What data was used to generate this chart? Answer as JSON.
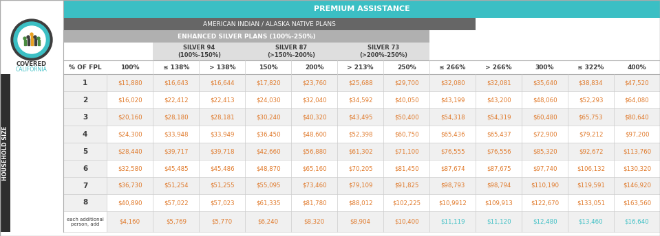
{
  "title_premium": "PREMIUM ASSISTANCE",
  "title_ai_an": "AMERICAN INDIAN / ALASKA NATIVE PLANS",
  "title_enhanced": "ENHANCED SILVER PLANS (100%-250%)",
  "silver94_label": "SILVER 94\n(100%-150%)",
  "silver87_label": "SILVER 87\n(>150%-200%)",
  "silver73_label": "SILVER 73\n(>200%-250%)",
  "col_headers": [
    "% OF FPL",
    "100%",
    "≤ 138%",
    "> 138%",
    "150%",
    "200%",
    "> 213%",
    "250%",
    "≤ 266%",
    "> 266%",
    "300%",
    "≤ 322%",
    "400%"
  ],
  "row_labels": [
    "1",
    "2",
    "3",
    "4",
    "5",
    "6",
    "7",
    "8",
    "each additional\nperson, add"
  ],
  "data": [
    [
      "$11,880",
      "$16,643",
      "$16,644",
      "$17,820",
      "$23,760",
      "$25,688",
      "$29,700",
      "$32,080",
      "$32,081",
      "$35,640",
      "$38,834",
      "$47,520"
    ],
    [
      "$16,020",
      "$22,412",
      "$22,413",
      "$24,030",
      "$32,040",
      "$34,592",
      "$40,050",
      "$43,199",
      "$43,200",
      "$48,060",
      "$52,293",
      "$64,080"
    ],
    [
      "$20,160",
      "$28,180",
      "$28,181",
      "$30,240",
      "$40,320",
      "$43,495",
      "$50,400",
      "$54,318",
      "$54,319",
      "$60,480",
      "$65,753",
      "$80,640"
    ],
    [
      "$24,300",
      "$33,948",
      "$33,949",
      "$36,450",
      "$48,600",
      "$52,398",
      "$60,750",
      "$65,436",
      "$65,437",
      "$72,900",
      "$79,212",
      "$97,200"
    ],
    [
      "$28,440",
      "$39,717",
      "$39,718",
      "$42,660",
      "$56,880",
      "$61,302",
      "$71,100",
      "$76,555",
      "$76,556",
      "$85,320",
      "$92,672",
      "$113,760"
    ],
    [
      "$32,580",
      "$45,485",
      "$45,486",
      "$48,870",
      "$65,160",
      "$70,205",
      "$81,450",
      "$87,674",
      "$87,675",
      "$97,740",
      "$106,132",
      "$130,320"
    ],
    [
      "$36,730",
      "$51,254",
      "$51,255",
      "$55,095",
      "$73,460",
      "$79,109",
      "$91,825",
      "$98,793",
      "$98,794",
      "$110,190",
      "$119,591",
      "$146,920"
    ],
    [
      "$40,890",
      "$57,022",
      "$57,023",
      "$61,335",
      "$81,780",
      "$88,012",
      "$102,225",
      "$10,9912",
      "$109,913",
      "$122,670",
      "$133,051",
      "$163,560"
    ],
    [
      "$4,160",
      "$5,769",
      "$5,770",
      "$6,240",
      "$8,320",
      "$8,904",
      "$10,400",
      "$11,119",
      "$11,120",
      "$12,480",
      "$13,460",
      "$16,640"
    ]
  ],
  "color_teal": "#3bbfc4",
  "color_ai_gray": "#666666",
  "color_enhanced_gray": "#b0b0b0",
  "color_silver_bg": "#dedede",
  "color_header_text": "#3d3d3d",
  "color_data_text": "#e07828",
  "color_colhdr_text": "#3d3d3d",
  "color_white": "#ffffff",
  "color_row_even": "#f0f0f0",
  "color_row_odd": "#ffffff",
  "color_side_bg": "#2e2e2e",
  "color_side_text": "#ffffff",
  "color_border": "#aaaaaa",
  "color_divider": "#cccccc",
  "logo_outer": "#3d3d3d",
  "logo_teal": "#3bbfc4",
  "logo_white": "#ffffff",
  "logo_green": "#4a8c3f",
  "logo_orange": "#e8a020",
  "covered_text": "#3d3d3d",
  "california_text": "#3bbfc4"
}
